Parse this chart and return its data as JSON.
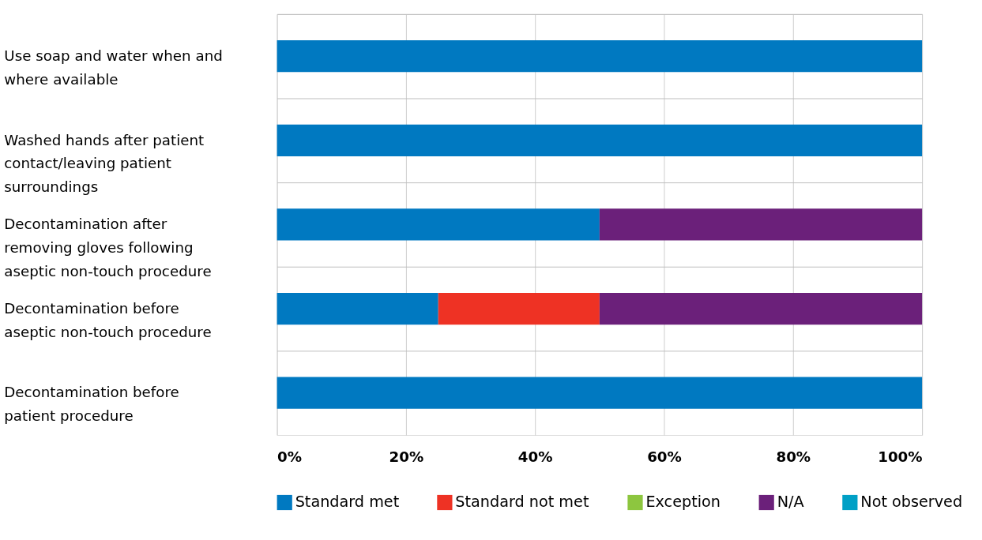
{
  "chart_data": {
    "type": "bar",
    "orientation": "horizontal",
    "stacked": true,
    "categories": [
      "Use soap and water when and where available",
      "Washed hands after patient contact/leaving patient surroundings",
      "Decontamination after removing gloves following aseptic non-touch procedure",
      "Decontamination before aseptic non-touch procedure",
      "Decontamination before patient procedure"
    ],
    "series": [
      {
        "name": "Standard met",
        "color": "#0079c1",
        "values": [
          100,
          100,
          50,
          25,
          100
        ]
      },
      {
        "name": "Standard not met",
        "color": "#ee3224",
        "values": [
          0,
          0,
          0,
          25,
          0
        ]
      },
      {
        "name": "Exception",
        "color": "#8dc63f",
        "values": [
          0,
          0,
          0,
          0,
          0
        ]
      },
      {
        "name": "N/A",
        "color": "#6b207a",
        "values": [
          0,
          0,
          50,
          50,
          0
        ]
      },
      {
        "name": "Not observed",
        "color": "#00a0c6",
        "values": [
          0,
          0,
          0,
          0,
          0
        ]
      }
    ],
    "xlim": [
      0,
      100
    ],
    "xticks": [
      {
        "value": 0,
        "label": "0%"
      },
      {
        "value": 20,
        "label": "20%"
      },
      {
        "value": 40,
        "label": "40%"
      },
      {
        "value": 60,
        "label": "60%"
      },
      {
        "value": 80,
        "label": "80%"
      },
      {
        "value": 100,
        "label": "100%"
      }
    ],
    "grid": true,
    "legend": "bottom"
  }
}
